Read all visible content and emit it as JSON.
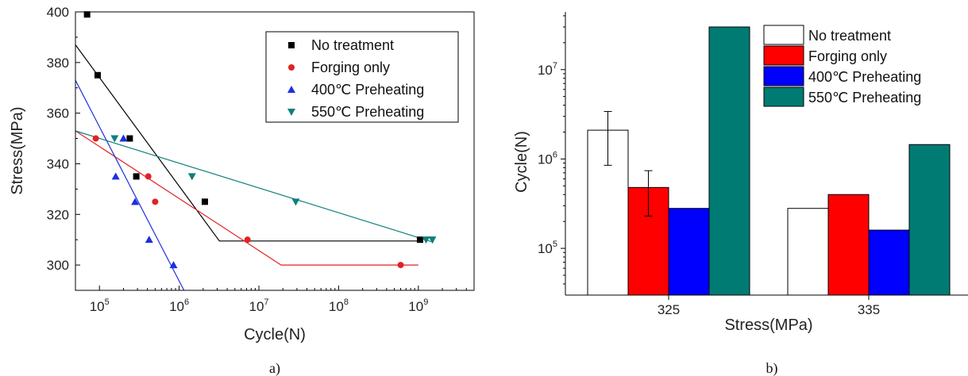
{
  "chart_data": [
    {
      "type": "scatter",
      "panel_label": "a)",
      "xlabel": "Cycle(N)",
      "ylabel": "Stress(MPa)",
      "x_scale": "log",
      "xlim": [
        50000,
        5000000000
      ],
      "ylim": [
        290,
        400
      ],
      "x_ticks": [
        {
          "value": 100000,
          "base": "10",
          "exp": "5"
        },
        {
          "value": 1000000,
          "base": "10",
          "exp": "6"
        },
        {
          "value": 10000000,
          "base": "10",
          "exp": "7"
        },
        {
          "value": 100000000,
          "base": "10",
          "exp": "8"
        },
        {
          "value": 1000000000,
          "base": "10",
          "exp": "9"
        }
      ],
      "y_ticks": [
        "300",
        "320",
        "340",
        "360",
        "380",
        "400"
      ],
      "legend_position": "top-right",
      "series": [
        {
          "name": "No treatment",
          "marker": "square",
          "color": "#000000",
          "points": [
            [
              70000,
              399
            ],
            [
              95000,
              375
            ],
            [
              240000,
              350
            ],
            [
              290000,
              335
            ],
            [
              2100000,
              325
            ],
            [
              1050000000,
              310
            ]
          ],
          "fit": [
            [
              50000,
              387
            ],
            [
              3200000,
              309.5
            ],
            [
              1100000000,
              309.5
            ]
          ]
        },
        {
          "name": "Forging only",
          "marker": "circle",
          "color": "#e32222",
          "points": [
            [
              90000,
              350
            ],
            [
              410000,
              335
            ],
            [
              500000,
              325
            ],
            [
              7200000,
              310
            ],
            [
              600000000,
              300
            ]
          ],
          "fit": [
            [
              50000,
              353
            ],
            [
              19000000,
              300
            ],
            [
              1000000000,
              300
            ]
          ]
        },
        {
          "name": "400℃ Preheating",
          "marker": "triangle-up",
          "color": "#1d2fe0",
          "points": [
            [
              160000,
              335
            ],
            [
              200000,
              350
            ],
            [
              280000,
              325
            ],
            [
              420000,
              310
            ],
            [
              850000,
              300
            ]
          ],
          "fit": [
            [
              50000,
              373
            ],
            [
              1150000,
              290
            ]
          ]
        },
        {
          "name": "550℃ Preheating",
          "marker": "triangle-down",
          "color": "#0f7f7c",
          "points": [
            [
              155000,
              350
            ],
            [
              1450000,
              335
            ],
            [
              29000000,
              325
            ],
            [
              1250000000,
              310
            ],
            [
              1500000000,
              310
            ]
          ],
          "fit": [
            [
              50000,
              353
            ],
            [
              1550000000,
              309
            ]
          ]
        }
      ]
    },
    {
      "type": "bar",
      "panel_label": "b)",
      "xlabel": "Stress(MPa)",
      "ylabel": "Cycle(N)",
      "y_scale": "log",
      "ylim": [
        30000,
        30000000
      ],
      "y_ticks": [
        {
          "value": 100000,
          "base": "10",
          "exp": "5"
        },
        {
          "value": 1000000,
          "base": "10",
          "exp": "6"
        },
        {
          "value": 10000000,
          "base": "10",
          "exp": "7"
        }
      ],
      "categories": [
        "325",
        "335"
      ],
      "legend_position": "top-right",
      "series": [
        {
          "name": "No treatment",
          "color": "#ffffff",
          "values": [
            2100000,
            280000
          ],
          "error_bars": [
            [
              850000,
              3400000
            ],
            null
          ]
        },
        {
          "name": "Forging only",
          "color": "#ff0000",
          "values": [
            480000,
            400000
          ],
          "error_bars": [
            [
              230000,
              740000
            ],
            null
          ]
        },
        {
          "name": "400℃ Preheating",
          "color": "#0000ff",
          "values": [
            280000,
            160000
          ],
          "error_bars": [
            null,
            null
          ]
        },
        {
          "name": "550℃ Preheating",
          "color": "#007b74",
          "values": [
            30000000,
            1450000
          ],
          "error_bars": [
            null,
            null
          ]
        }
      ]
    }
  ]
}
